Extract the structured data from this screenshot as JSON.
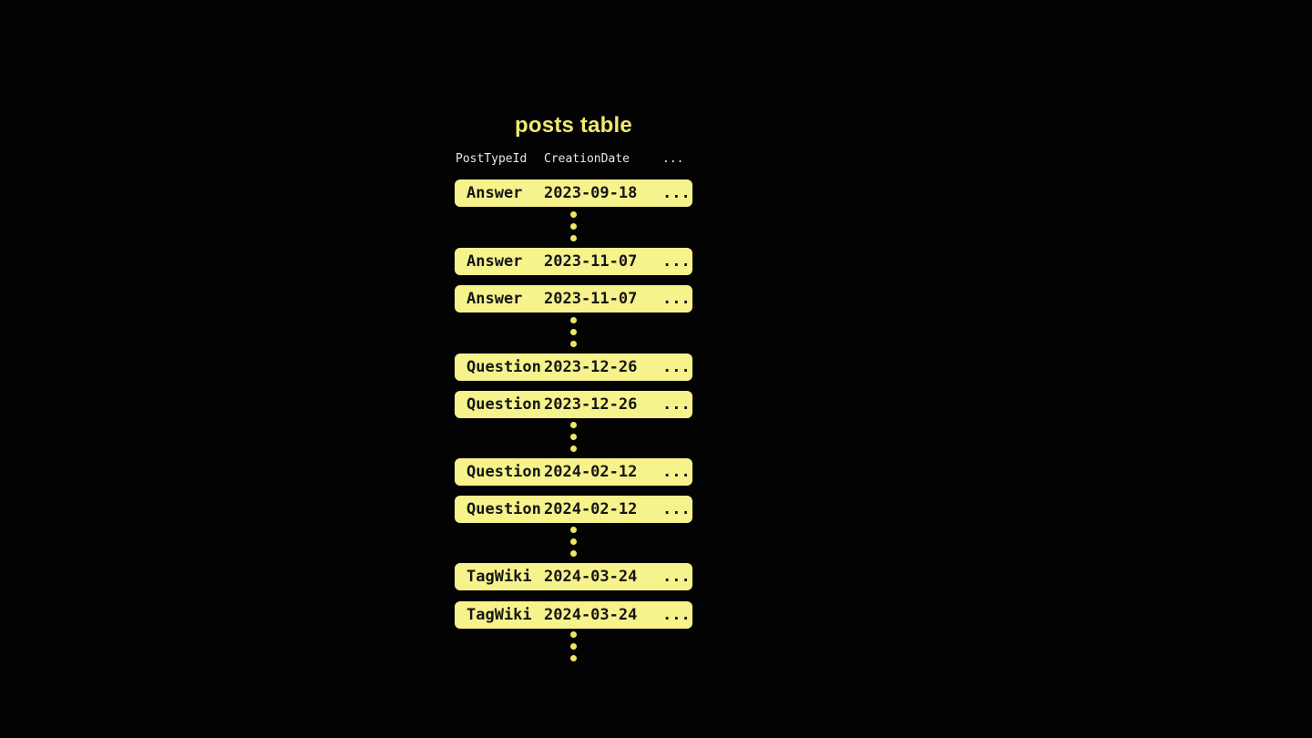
{
  "title": "posts table",
  "header": {
    "col_post_type": "PostTypeId",
    "col_creation_date": "CreationDate",
    "col_more": "..."
  },
  "rows": [
    {
      "post_type": "Answer",
      "creation_date": "2023-09-18",
      "more": "..."
    },
    {
      "post_type": "Answer",
      "creation_date": "2023-11-07",
      "more": "..."
    },
    {
      "post_type": "Answer",
      "creation_date": "2023-11-07",
      "more": "..."
    },
    {
      "post_type": "Question",
      "creation_date": "2023-12-26",
      "more": "..."
    },
    {
      "post_type": "Question",
      "creation_date": "2023-12-26",
      "more": "..."
    },
    {
      "post_type": "Question",
      "creation_date": "2024-02-12",
      "more": "..."
    },
    {
      "post_type": "Question",
      "creation_date": "2024-02-12",
      "more": "..."
    },
    {
      "post_type": "TagWiki",
      "creation_date": "2024-03-24",
      "more": "..."
    },
    {
      "post_type": "TagWiki",
      "creation_date": "2024-03-24",
      "more": "..."
    }
  ],
  "colors": {
    "background": "#030303",
    "row_fill": "#f6f28c",
    "row_text": "#161616",
    "title_text": "#f0ea6f",
    "header_text": "#e9e9e7",
    "dot": "#ece668"
  }
}
